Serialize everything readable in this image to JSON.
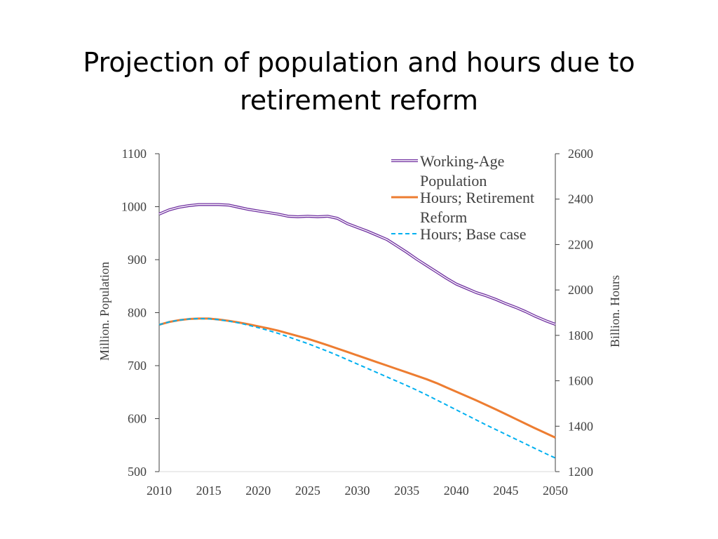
{
  "chart_data": {
    "type": "line",
    "title": [
      "Projection of population and hours due to",
      "retirement reform"
    ],
    "x": [
      2010,
      2011,
      2012,
      2013,
      2014,
      2015,
      2016,
      2017,
      2018,
      2019,
      2020,
      2021,
      2022,
      2023,
      2024,
      2025,
      2026,
      2027,
      2028,
      2029,
      2030,
      2031,
      2032,
      2033,
      2034,
      2035,
      2036,
      2037,
      2038,
      2039,
      2040,
      2041,
      2042,
      2043,
      2044,
      2045,
      2046,
      2047,
      2048,
      2049,
      2050
    ],
    "xlim": [
      2010,
      2050
    ],
    "xticks": [
      "2010",
      "2015",
      "2020",
      "2025",
      "2030",
      "2035",
      "2040",
      "2045",
      "2050"
    ],
    "y_left": {
      "label": "Million. Population",
      "lim": [
        500,
        1100
      ],
      "ticks": [
        "500",
        "600",
        "700",
        "800",
        "900",
        "1000",
        "1100"
      ]
    },
    "y_right": {
      "label": "Billion. Hours",
      "lim": [
        1200,
        2600
      ],
      "ticks": [
        "1200",
        "1400",
        "1600",
        "1800",
        "2000",
        "2200",
        "2400",
        "2600"
      ]
    },
    "series": [
      {
        "name": "Working-Age Population",
        "legend_lines": [
          "Working-Age",
          "Population"
        ],
        "axis": "left",
        "style": "double",
        "color": "#7030A0",
        "values": [
          986,
          994,
          999,
          1002,
          1004,
          1004,
          1004,
          1003,
          999,
          995,
          992,
          989,
          986,
          982,
          981,
          982,
          981,
          982,
          978,
          968,
          961,
          954,
          946,
          938,
          926,
          914,
          901,
          889,
          877,
          865,
          854,
          846,
          838,
          832,
          825,
          817,
          810,
          802,
          793,
          785,
          778
        ]
      },
      {
        "name": "Hours; Retirement Reform",
        "legend_lines": [
          "Hours; Retirement",
          "Reform"
        ],
        "axis": "right",
        "style": "solid",
        "color": "#ED7D31",
        "values": [
          1847,
          1859,
          1867,
          1872,
          1874,
          1874,
          1870,
          1864,
          1857,
          1849,
          1840,
          1831,
          1821,
          1809,
          1797,
          1785,
          1771,
          1757,
          1742,
          1727,
          1712,
          1697,
          1682,
          1667,
          1652,
          1637,
          1622,
          1607,
          1590,
          1571,
          1552,
          1533,
          1514,
          1494,
          1474,
          1453,
          1432,
          1411,
          1390,
          1370,
          1350
        ]
      },
      {
        "name": "Hours; Base case",
        "legend_lines": [
          "Hours; Base case"
        ],
        "axis": "right",
        "style": "dashed",
        "color": "#00B0F0",
        "values": [
          1847,
          1859,
          1867,
          1872,
          1874,
          1873,
          1869,
          1863,
          1855,
          1845,
          1834,
          1822,
          1809,
          1794,
          1779,
          1764,
          1747,
          1730,
          1712,
          1693,
          1674,
          1655,
          1636,
          1617,
          1598,
          1579,
          1559,
          1538,
          1516,
          1494,
          1472,
          1450,
          1428,
          1406,
          1385,
          1364,
          1343,
          1322,
          1301,
          1280,
          1260
        ]
      }
    ],
    "legend_position": "top-right",
    "grid": false
  }
}
